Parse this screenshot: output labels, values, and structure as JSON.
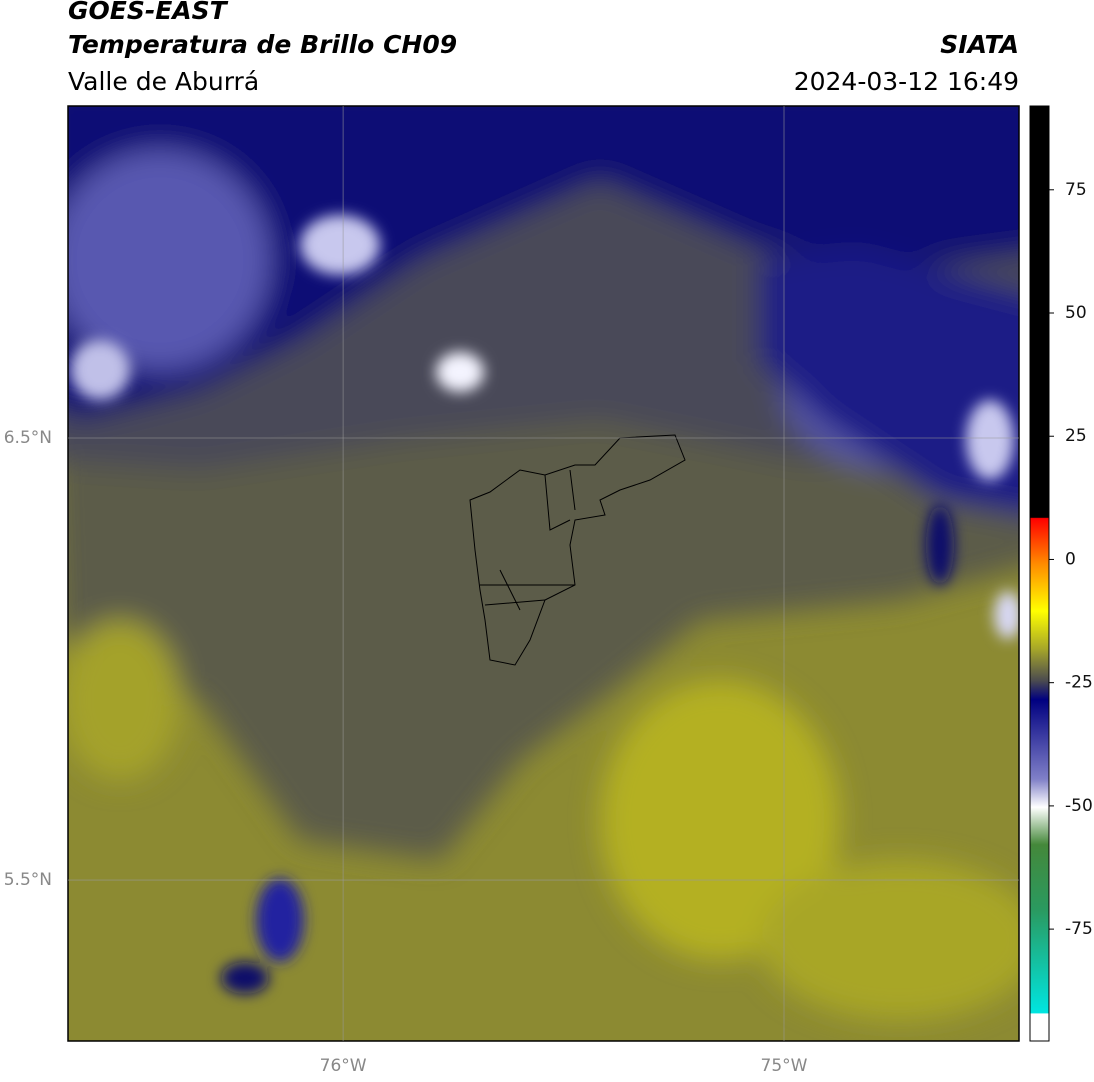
{
  "header": {
    "title": "GOES-EAST",
    "subtitle": "Temperatura de Brillo CH09",
    "region": "Valle de Aburrá",
    "source": "SIATA",
    "datetime": "2024-03-12 16:49"
  },
  "map": {
    "lonlim": [
      -76.624,
      -74.467
    ],
    "latlim": [
      5.136,
      7.251
    ],
    "lat_ticks": [
      {
        "value": 6.5,
        "label": "6.5°N"
      },
      {
        "value": 5.5,
        "label": "5.5°N"
      }
    ],
    "lon_ticks": [
      {
        "value": -76,
        "label": "76°W"
      },
      {
        "value": -75,
        "label": "75°W"
      }
    ]
  },
  "colorbar": {
    "lim": [
      -97.7,
      92
    ],
    "ticks": [
      75,
      50,
      25,
      0,
      -25,
      -50,
      -75
    ]
  }
}
